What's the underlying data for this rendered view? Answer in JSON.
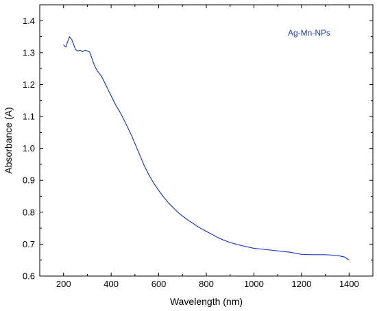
{
  "chart_data": {
    "type": "line",
    "title": "",
    "xlabel": "Wavelength (nm)",
    "ylabel": "Absorbance (A)",
    "xlim": [
      100,
      1500
    ],
    "ylim": [
      0.6,
      1.45
    ],
    "xticks": [
      200,
      400,
      600,
      800,
      1000,
      1200,
      1400
    ],
    "yticks": [
      0.6,
      0.7,
      0.8,
      0.9,
      1.0,
      1.1,
      1.2,
      1.3,
      1.4
    ],
    "xtick_labels": [
      "200",
      "400",
      "600",
      "800",
      "1000",
      "1200",
      "1400"
    ],
    "ytick_labels": [
      "0.6",
      "0.7",
      "0.8",
      "0.9",
      "1.0",
      "1.1",
      "1.2",
      "1.3",
      "1.4"
    ],
    "grid": false,
    "legend_position": "top-right",
    "series": [
      {
        "name": "Ag-Mn-NPs",
        "color": "#1f3fc8",
        "x": [
          200,
          205,
          210,
          215,
          220,
          225,
          230,
          235,
          240,
          250,
          260,
          270,
          280,
          290,
          300,
          310,
          320,
          330,
          340,
          360,
          380,
          400,
          420,
          440,
          460,
          480,
          500,
          520,
          540,
          560,
          580,
          600,
          620,
          640,
          660,
          680,
          700,
          725,
          750,
          775,
          800,
          825,
          850,
          875,
          900,
          925,
          950,
          975,
          1000,
          1050,
          1100,
          1150,
          1200,
          1250,
          1300,
          1340,
          1360,
          1380,
          1400
        ],
        "y": [
          1.325,
          1.32,
          1.318,
          1.33,
          1.34,
          1.35,
          1.345,
          1.34,
          1.33,
          1.31,
          1.305,
          1.308,
          1.303,
          1.308,
          1.305,
          1.302,
          1.28,
          1.26,
          1.245,
          1.225,
          1.195,
          1.165,
          1.135,
          1.11,
          1.08,
          1.05,
          1.015,
          0.98,
          0.945,
          0.915,
          0.89,
          0.868,
          0.848,
          0.83,
          0.815,
          0.8,
          0.788,
          0.774,
          0.762,
          0.75,
          0.74,
          0.73,
          0.72,
          0.712,
          0.705,
          0.7,
          0.695,
          0.691,
          0.687,
          0.683,
          0.679,
          0.675,
          0.668,
          0.667,
          0.667,
          0.665,
          0.663,
          0.66,
          0.65
        ]
      }
    ]
  }
}
